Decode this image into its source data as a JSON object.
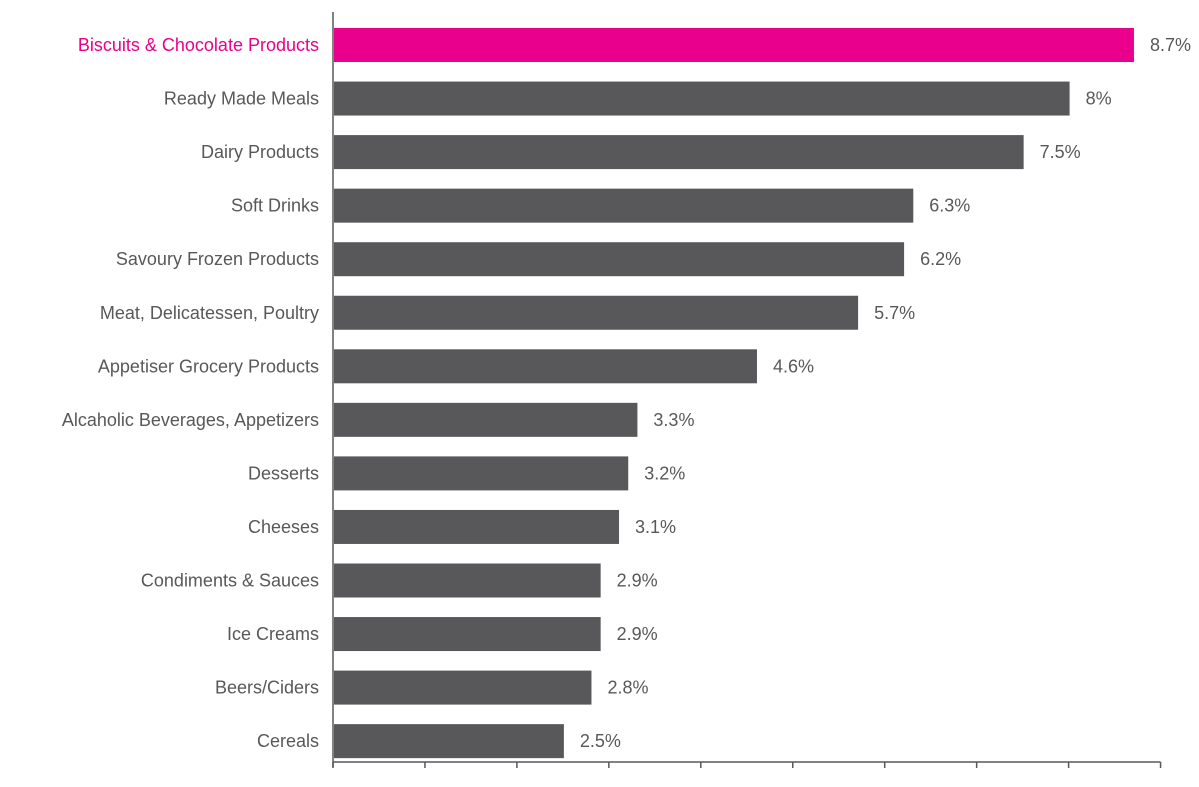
{
  "chart_data": {
    "type": "bar",
    "orientation": "horizontal",
    "categories": [
      "Biscuits & Chocolate Products",
      "Ready Made Meals",
      "Dairy Products",
      "Soft Drinks",
      "Savoury Frozen Products",
      "Meat, Delicatessen, Poultry",
      "Appetiser Grocery Products",
      "Alcaholic Beverages, Appetizers",
      "Desserts",
      "Cheeses",
      "Condiments & Sauces",
      "Ice Creams",
      "Beers/Ciders",
      "Cereals"
    ],
    "values": [
      8.7,
      8,
      7.5,
      6.3,
      6.2,
      5.7,
      4.6,
      3.3,
      3.2,
      3.1,
      2.9,
      2.9,
      2.8,
      2.5
    ],
    "value_labels": [
      "8.7%",
      "8%",
      "7.5%",
      "6.3%",
      "6.2%",
      "5.7%",
      "4.6%",
      "3.3%",
      "3.2%",
      "3.1%",
      "2.9%",
      "2.9%",
      "2.8%",
      "2.5%"
    ],
    "highlight_index": 0,
    "xlim": [
      0,
      9
    ],
    "x_tick_count": 10,
    "grid": false,
    "legend": "none",
    "title": "",
    "xlabel": "",
    "ylabel": "",
    "colors": {
      "bar": "#58585a",
      "highlight": "#e9008c",
      "label": "#58585a",
      "axis": "#58585a"
    }
  }
}
